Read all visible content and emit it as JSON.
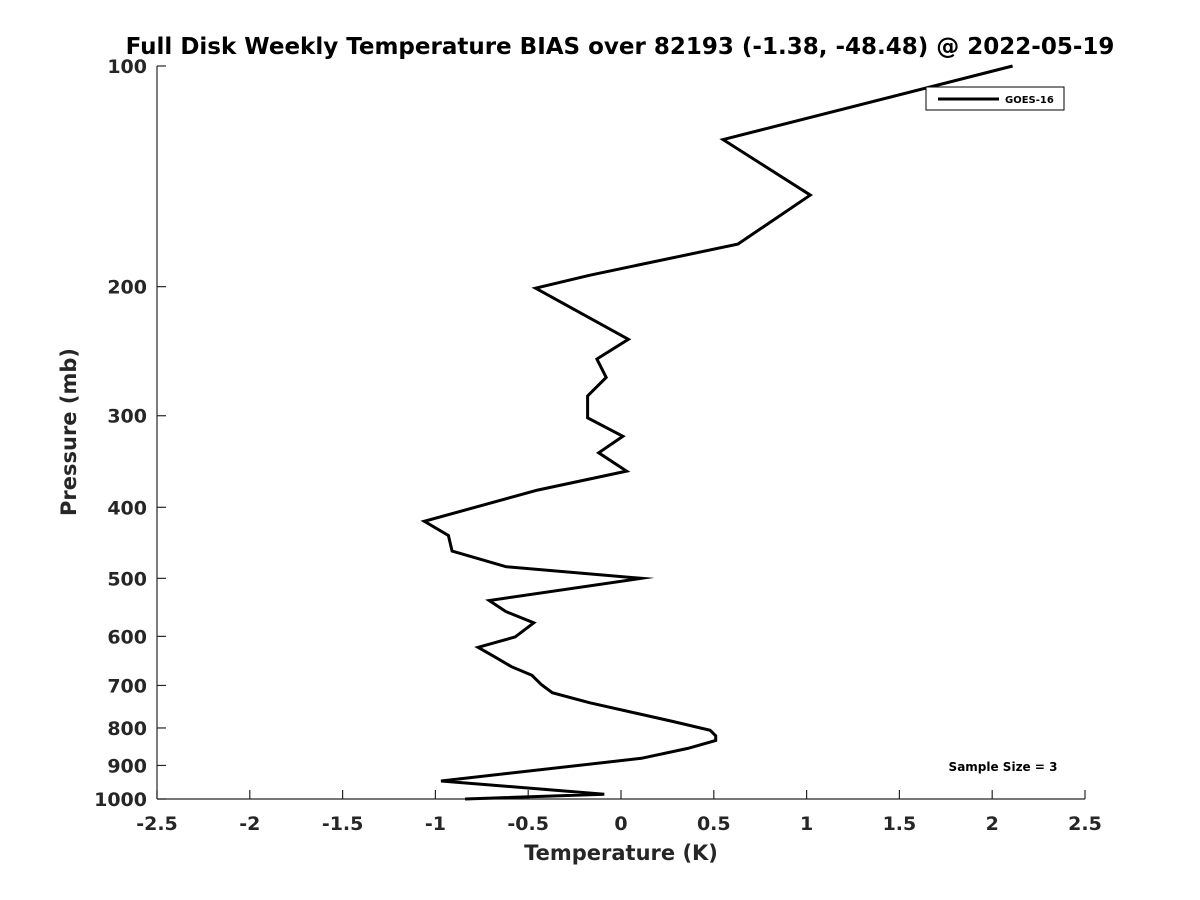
{
  "chart_data": {
    "type": "line",
    "title": "Full Disk Weekly Temperature BIAS over 82193 (-1.38, -48.48) @ 2022-05-19",
    "xlabel": "Temperature (K)",
    "ylabel": "Pressure (mb)",
    "xlim": [
      -2.5,
      2.5
    ],
    "ylim": [
      100,
      1000
    ],
    "y_scale": "log",
    "y_reversed": true,
    "x_ticks": [
      -2.5,
      -2,
      -1.5,
      -1,
      -0.5,
      0,
      0.5,
      1,
      1.5,
      2,
      2.5
    ],
    "x_tick_labels": [
      "-2.5",
      "-2",
      "-1.5",
      "-1",
      "-0.5",
      "0",
      "0.5",
      "1",
      "1.5",
      "2",
      "2.5"
    ],
    "y_ticks": [
      100,
      200,
      300,
      400,
      500,
      600,
      700,
      800,
      900,
      1000
    ],
    "y_tick_labels": [
      "100",
      "200",
      "300",
      "400",
      "500",
      "600",
      "700",
      "800",
      "900",
      "1000"
    ],
    "grid": false,
    "legend_position": "top-right",
    "annotation": "Sample Size = 3",
    "series": [
      {
        "name": "GOES-16",
        "color": "#000000",
        "points": [
          [
            2.11,
            100
          ],
          [
            0.55,
            126
          ],
          [
            1.02,
            150
          ],
          [
            0.63,
            175
          ],
          [
            -0.17,
            193
          ],
          [
            -0.46,
            201
          ],
          [
            0.04,
            236
          ],
          [
            -0.13,
            251
          ],
          [
            -0.08,
            266
          ],
          [
            -0.18,
            282
          ],
          [
            -0.18,
            302
          ],
          [
            0.01,
            320
          ],
          [
            -0.12,
            337
          ],
          [
            0.03,
            357
          ],
          [
            -0.45,
            379
          ],
          [
            -1.06,
            418
          ],
          [
            -0.93,
            437
          ],
          [
            -0.91,
            459
          ],
          [
            -0.62,
            482
          ],
          [
            0.11,
            500
          ],
          [
            -0.71,
            536
          ],
          [
            -0.62,
            555
          ],
          [
            -0.47,
            575
          ],
          [
            -0.57,
            601
          ],
          [
            -0.77,
            621
          ],
          [
            -0.67,
            642
          ],
          [
            -0.59,
            660
          ],
          [
            -0.48,
            678
          ],
          [
            -0.43,
            698
          ],
          [
            -0.37,
            716
          ],
          [
            -0.17,
            739
          ],
          [
            0.28,
            784
          ],
          [
            0.48,
            806
          ],
          [
            0.51,
            820
          ],
          [
            0.51,
            832
          ],
          [
            0.36,
            853
          ],
          [
            0.11,
            880
          ],
          [
            -0.97,
            945
          ],
          [
            -0.09,
            985
          ],
          [
            -0.84,
            1000
          ]
        ]
      }
    ]
  }
}
